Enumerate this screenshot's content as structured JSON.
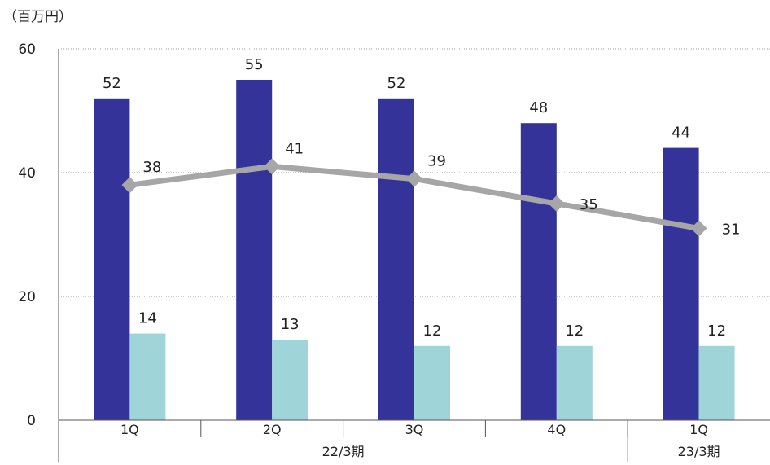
{
  "chart_data": {
    "type": "bar",
    "unit_label": "（百万円）",
    "ylim": [
      0,
      60
    ],
    "yticks": [
      0,
      20,
      40,
      60
    ],
    "grid": true,
    "categories": [
      "1Q",
      "2Q",
      "3Q",
      "4Q",
      "1Q"
    ],
    "groups": [
      {
        "label": "22/3期",
        "categories": [
          "1Q",
          "2Q",
          "3Q",
          "4Q"
        ]
      },
      {
        "label": "23/3期",
        "categories": [
          "1Q"
        ]
      }
    ],
    "series": [
      {
        "type": "bar",
        "color": "#333399",
        "values": [
          52,
          55,
          52,
          48,
          44
        ]
      },
      {
        "type": "bar",
        "color": "#9fd4d8",
        "values": [
          14,
          13,
          12,
          12,
          12
        ]
      },
      {
        "type": "line",
        "color": "#a6a6a6",
        "marker": "diamond",
        "values": [
          38,
          41,
          39,
          35,
          31
        ]
      }
    ]
  }
}
